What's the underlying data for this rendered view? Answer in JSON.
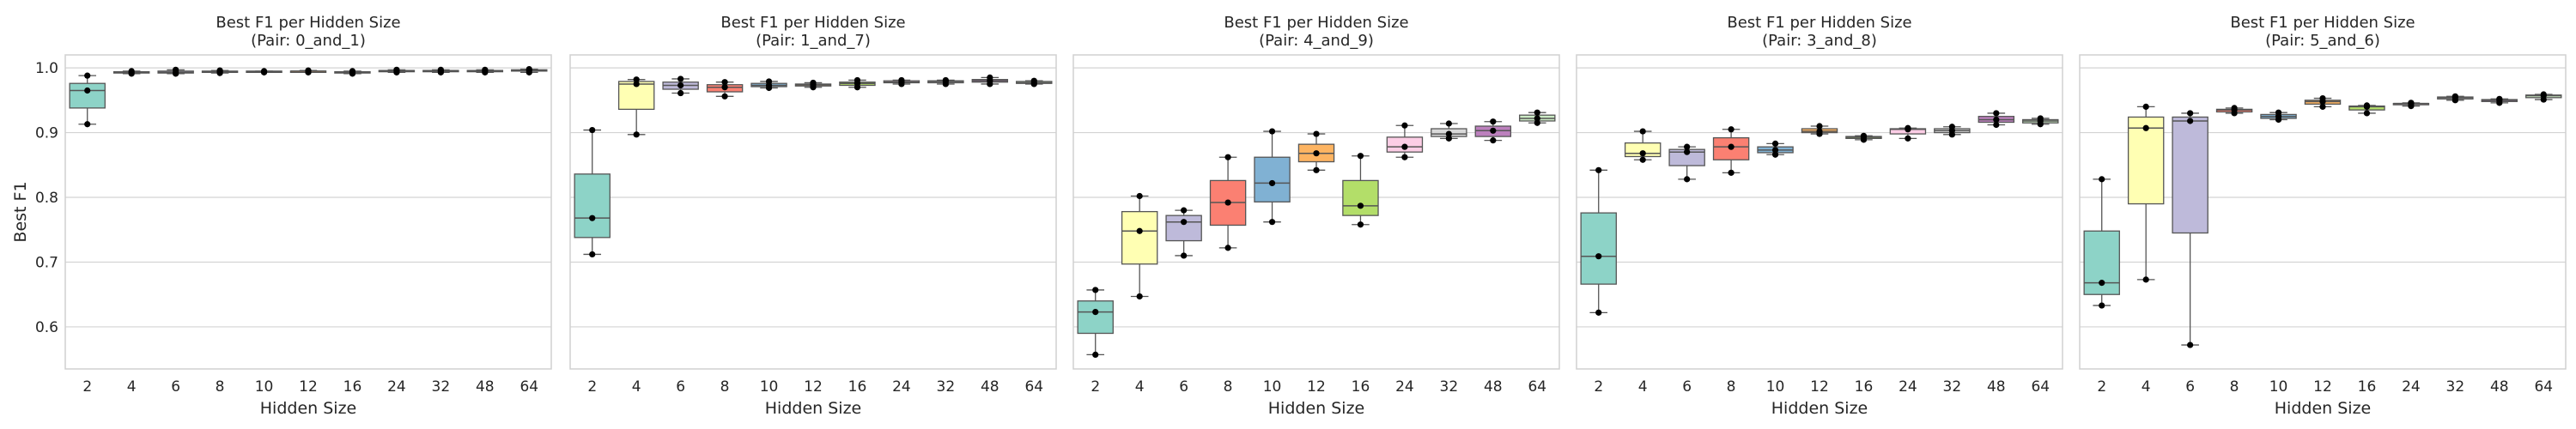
{
  "figure": {
    "palette": [
      "#8dd3c7",
      "#ffffb3",
      "#bebada",
      "#fb8072",
      "#80b1d3",
      "#fdb462",
      "#b3de69",
      "#fccde5",
      "#d9d9d9",
      "#bc80bd",
      "#ccebc5"
    ],
    "frame_color": "#d0d0d0",
    "grid_color": "#d3d3d3",
    "box_edge_color": "#555555",
    "point_color": "#000000"
  },
  "chart_data": [
    {
      "type": "box",
      "title_line1": "Best F1 per Hidden Size",
      "title_line2": "(Pair: 0_and_1)",
      "xlabel": "Hidden Size",
      "ylabel": "Best F1",
      "categories": [
        "2",
        "4",
        "6",
        "8",
        "10",
        "12",
        "16",
        "24",
        "32",
        "48",
        "64"
      ],
      "ylim": [
        0.535,
        1.02
      ],
      "yticks": [
        0.6,
        0.7,
        0.8,
        0.9,
        1.0
      ],
      "ytick_labels": [
        "0.6",
        "0.7",
        "0.8",
        "0.9",
        "1.0"
      ],
      "grid": true,
      "boxes": [
        {
          "whislo": 0.913,
          "q1": 0.938,
          "med": 0.965,
          "q3": 0.976,
          "whishi": 0.988,
          "points": [
            0.913,
            0.965,
            0.988
          ]
        },
        {
          "whislo": 0.991,
          "q1": 0.992,
          "med": 0.993,
          "q3": 0.994,
          "whishi": 0.995,
          "points": [
            0.991,
            0.993,
            0.995
          ]
        },
        {
          "whislo": 0.991,
          "q1": 0.992,
          "med": 0.993,
          "q3": 0.995,
          "whishi": 0.997,
          "points": [
            0.991,
            0.993,
            0.997
          ]
        },
        {
          "whislo": 0.992,
          "q1": 0.993,
          "med": 0.994,
          "q3": 0.995,
          "whishi": 0.996,
          "points": [
            0.992,
            0.994,
            0.996
          ]
        },
        {
          "whislo": 0.993,
          "q1": 0.994,
          "med": 0.994,
          "q3": 0.995,
          "whishi": 0.995,
          "points": [
            0.993,
            0.994,
            0.995
          ]
        },
        {
          "whislo": 0.993,
          "q1": 0.994,
          "med": 0.995,
          "q3": 0.995,
          "whishi": 0.996,
          "points": [
            0.993,
            0.995,
            0.996
          ]
        },
        {
          "whislo": 0.991,
          "q1": 0.992,
          "med": 0.993,
          "q3": 0.994,
          "whishi": 0.995,
          "points": [
            0.991,
            0.993,
            0.995
          ]
        },
        {
          "whislo": 0.993,
          "q1": 0.994,
          "med": 0.995,
          "q3": 0.996,
          "whishi": 0.997,
          "points": [
            0.993,
            0.995,
            0.997
          ]
        },
        {
          "whislo": 0.993,
          "q1": 0.994,
          "med": 0.995,
          "q3": 0.996,
          "whishi": 0.997,
          "points": [
            0.993,
            0.995,
            0.997
          ]
        },
        {
          "whislo": 0.993,
          "q1": 0.994,
          "med": 0.995,
          "q3": 0.996,
          "whishi": 0.997,
          "points": [
            0.993,
            0.995,
            0.997
          ]
        },
        {
          "whislo": 0.993,
          "q1": 0.995,
          "med": 0.996,
          "q3": 0.997,
          "whishi": 0.998,
          "points": [
            0.993,
            0.996,
            0.998
          ]
        }
      ]
    },
    {
      "type": "box",
      "title_line1": "Best F1 per Hidden Size",
      "title_line2": "(Pair: 1_and_7)",
      "xlabel": "Hidden Size",
      "ylabel": "",
      "categories": [
        "2",
        "4",
        "6",
        "8",
        "10",
        "12",
        "16",
        "24",
        "32",
        "48",
        "64"
      ],
      "ylim": [
        0.535,
        1.02
      ],
      "yticks": [
        0.6,
        0.7,
        0.8,
        0.9,
        1.0
      ],
      "ytick_labels": [],
      "grid": true,
      "boxes": [
        {
          "whislo": 0.712,
          "q1": 0.738,
          "med": 0.768,
          "q3": 0.836,
          "whishi": 0.904,
          "points": [
            0.712,
            0.768,
            0.904
          ]
        },
        {
          "whislo": 0.897,
          "q1": 0.936,
          "med": 0.975,
          "q3": 0.979,
          "whishi": 0.982,
          "points": [
            0.897,
            0.975,
            0.982
          ]
        },
        {
          "whislo": 0.961,
          "q1": 0.967,
          "med": 0.973,
          "q3": 0.978,
          "whishi": 0.983,
          "points": [
            0.961,
            0.973,
            0.983
          ]
        },
        {
          "whislo": 0.956,
          "q1": 0.963,
          "med": 0.97,
          "q3": 0.974,
          "whishi": 0.978,
          "points": [
            0.956,
            0.97,
            0.978
          ]
        },
        {
          "whislo": 0.969,
          "q1": 0.971,
          "med": 0.973,
          "q3": 0.976,
          "whishi": 0.979,
          "points": [
            0.969,
            0.973,
            0.979
          ]
        },
        {
          "whislo": 0.97,
          "q1": 0.972,
          "med": 0.974,
          "q3": 0.975,
          "whishi": 0.977,
          "points": [
            0.97,
            0.974,
            0.977
          ]
        },
        {
          "whislo": 0.97,
          "q1": 0.973,
          "med": 0.976,
          "q3": 0.978,
          "whishi": 0.981,
          "points": [
            0.97,
            0.976,
            0.981
          ]
        },
        {
          "whislo": 0.975,
          "q1": 0.977,
          "med": 0.978,
          "q3": 0.98,
          "whishi": 0.981,
          "points": [
            0.975,
            0.978,
            0.981
          ]
        },
        {
          "whislo": 0.975,
          "q1": 0.977,
          "med": 0.979,
          "q3": 0.98,
          "whishi": 0.981,
          "points": [
            0.975,
            0.979,
            0.981
          ]
        },
        {
          "whislo": 0.975,
          "q1": 0.978,
          "med": 0.98,
          "q3": 0.982,
          "whishi": 0.985,
          "points": [
            0.975,
            0.98,
            0.985
          ]
        },
        {
          "whislo": 0.975,
          "q1": 0.976,
          "med": 0.977,
          "q3": 0.979,
          "whishi": 0.98,
          "points": [
            0.975,
            0.977,
            0.98
          ]
        }
      ]
    },
    {
      "type": "box",
      "title_line1": "Best F1 per Hidden Size",
      "title_line2": "(Pair: 4_and_9)",
      "xlabel": "Hidden Size",
      "ylabel": "",
      "categories": [
        "2",
        "4",
        "6",
        "8",
        "10",
        "12",
        "16",
        "24",
        "32",
        "48",
        "64"
      ],
      "ylim": [
        0.535,
        1.02
      ],
      "yticks": [
        0.6,
        0.7,
        0.8,
        0.9,
        1.0
      ],
      "ytick_labels": [],
      "grid": true,
      "boxes": [
        {
          "whislo": 0.557,
          "q1": 0.59,
          "med": 0.623,
          "q3": 0.64,
          "whishi": 0.657,
          "points": [
            0.557,
            0.623,
            0.657
          ]
        },
        {
          "whislo": 0.647,
          "q1": 0.697,
          "med": 0.748,
          "q3": 0.778,
          "whishi": 0.802,
          "points": [
            0.647,
            0.748,
            0.802
          ]
        },
        {
          "whislo": 0.71,
          "q1": 0.733,
          "med": 0.762,
          "q3": 0.772,
          "whishi": 0.78,
          "points": [
            0.71,
            0.762,
            0.78
          ]
        },
        {
          "whislo": 0.722,
          "q1": 0.757,
          "med": 0.792,
          "q3": 0.826,
          "whishi": 0.862,
          "points": [
            0.722,
            0.792,
            0.862
          ]
        },
        {
          "whislo": 0.762,
          "q1": 0.793,
          "med": 0.822,
          "q3": 0.862,
          "whishi": 0.902,
          "points": [
            0.762,
            0.822,
            0.902
          ]
        },
        {
          "whislo": 0.842,
          "q1": 0.855,
          "med": 0.868,
          "q3": 0.882,
          "whishi": 0.898,
          "points": [
            0.842,
            0.868,
            0.898
          ]
        },
        {
          "whislo": 0.758,
          "q1": 0.772,
          "med": 0.787,
          "q3": 0.826,
          "whishi": 0.864,
          "points": [
            0.758,
            0.787,
            0.864
          ]
        },
        {
          "whislo": 0.862,
          "q1": 0.87,
          "med": 0.878,
          "q3": 0.893,
          "whishi": 0.911,
          "points": [
            0.862,
            0.878,
            0.911
          ]
        },
        {
          "whislo": 0.891,
          "q1": 0.894,
          "med": 0.898,
          "q3": 0.906,
          "whishi": 0.914,
          "points": [
            0.891,
            0.898,
            0.914
          ]
        },
        {
          "whislo": 0.888,
          "q1": 0.894,
          "med": 0.903,
          "q3": 0.91,
          "whishi": 0.917,
          "points": [
            0.888,
            0.903,
            0.917
          ]
        },
        {
          "whislo": 0.915,
          "q1": 0.918,
          "med": 0.922,
          "q3": 0.927,
          "whishi": 0.931,
          "points": [
            0.915,
            0.922,
            0.931
          ]
        }
      ]
    },
    {
      "type": "box",
      "title_line1": "Best F1 per Hidden Size",
      "title_line2": "(Pair: 3_and_8)",
      "xlabel": "Hidden Size",
      "ylabel": "",
      "categories": [
        "2",
        "4",
        "6",
        "8",
        "10",
        "12",
        "16",
        "24",
        "32",
        "48",
        "64"
      ],
      "ylim": [
        0.535,
        1.02
      ],
      "yticks": [
        0.6,
        0.7,
        0.8,
        0.9,
        1.0
      ],
      "ytick_labels": [],
      "grid": true,
      "boxes": [
        {
          "whislo": 0.622,
          "q1": 0.666,
          "med": 0.709,
          "q3": 0.776,
          "whishi": 0.842,
          "points": [
            0.622,
            0.709,
            0.842
          ]
        },
        {
          "whislo": 0.858,
          "q1": 0.863,
          "med": 0.868,
          "q3": 0.884,
          "whishi": 0.902,
          "points": [
            0.858,
            0.868,
            0.902
          ]
        },
        {
          "whislo": 0.828,
          "q1": 0.849,
          "med": 0.87,
          "q3": 0.874,
          "whishi": 0.878,
          "points": [
            0.828,
            0.87,
            0.878
          ]
        },
        {
          "whislo": 0.838,
          "q1": 0.858,
          "med": 0.878,
          "q3": 0.892,
          "whishi": 0.905,
          "points": [
            0.838,
            0.878,
            0.905
          ]
        },
        {
          "whislo": 0.866,
          "q1": 0.869,
          "med": 0.873,
          "q3": 0.878,
          "whishi": 0.883,
          "points": [
            0.866,
            0.873,
            0.883
          ]
        },
        {
          "whislo": 0.898,
          "q1": 0.9,
          "med": 0.902,
          "q3": 0.906,
          "whishi": 0.91,
          "points": [
            0.898,
            0.902,
            0.91
          ]
        },
        {
          "whislo": 0.889,
          "q1": 0.891,
          "med": 0.893,
          "q3": 0.894,
          "whishi": 0.895,
          "points": [
            0.889,
            0.893,
            0.895
          ]
        },
        {
          "whislo": 0.891,
          "q1": 0.898,
          "med": 0.905,
          "q3": 0.906,
          "whishi": 0.907,
          "points": [
            0.891,
            0.905,
            0.907
          ]
        },
        {
          "whislo": 0.897,
          "q1": 0.9,
          "med": 0.903,
          "q3": 0.906,
          "whishi": 0.909,
          "points": [
            0.897,
            0.903,
            0.909
          ]
        },
        {
          "whislo": 0.912,
          "q1": 0.916,
          "med": 0.92,
          "q3": 0.925,
          "whishi": 0.93,
          "points": [
            0.912,
            0.92,
            0.93
          ]
        },
        {
          "whislo": 0.913,
          "q1": 0.915,
          "med": 0.918,
          "q3": 0.92,
          "whishi": 0.922,
          "points": [
            0.913,
            0.918,
            0.922
          ]
        }
      ]
    },
    {
      "type": "box",
      "title_line1": "Best F1 per Hidden Size",
      "title_line2": "(Pair: 5_and_6)",
      "xlabel": "Hidden Size",
      "ylabel": "",
      "categories": [
        "2",
        "4",
        "6",
        "8",
        "10",
        "12",
        "16",
        "24",
        "32",
        "48",
        "64"
      ],
      "ylim": [
        0.535,
        1.02
      ],
      "yticks": [
        0.6,
        0.7,
        0.8,
        0.9,
        1.0
      ],
      "ytick_labels": [],
      "grid": true,
      "boxes": [
        {
          "whislo": 0.633,
          "q1": 0.65,
          "med": 0.668,
          "q3": 0.748,
          "whishi": 0.828,
          "points": [
            0.633,
            0.668,
            0.828
          ]
        },
        {
          "whislo": 0.673,
          "q1": 0.79,
          "med": 0.907,
          "q3": 0.924,
          "whishi": 0.94,
          "points": [
            0.673,
            0.907,
            0.94
          ]
        },
        {
          "whislo": 0.572,
          "q1": 0.745,
          "med": 0.918,
          "q3": 0.924,
          "whishi": 0.93,
          "points": [
            0.572,
            0.918,
            0.93
          ]
        },
        {
          "whislo": 0.93,
          "q1": 0.932,
          "med": 0.935,
          "q3": 0.936,
          "whishi": 0.938,
          "points": [
            0.93,
            0.935,
            0.938
          ]
        },
        {
          "whislo": 0.92,
          "q1": 0.922,
          "med": 0.925,
          "q3": 0.928,
          "whishi": 0.931,
          "points": [
            0.92,
            0.925,
            0.931
          ]
        },
        {
          "whislo": 0.94,
          "q1": 0.944,
          "med": 0.948,
          "q3": 0.95,
          "whishi": 0.953,
          "points": [
            0.94,
            0.948,
            0.953
          ]
        },
        {
          "whislo": 0.93,
          "q1": 0.935,
          "med": 0.94,
          "q3": 0.941,
          "whishi": 0.942,
          "points": [
            0.93,
            0.94,
            0.942
          ]
        },
        {
          "whislo": 0.941,
          "q1": 0.943,
          "med": 0.945,
          "q3": 0.945,
          "whishi": 0.946,
          "points": [
            0.941,
            0.945,
            0.946
          ]
        },
        {
          "whislo": 0.95,
          "q1": 0.952,
          "med": 0.954,
          "q3": 0.955,
          "whishi": 0.956,
          "points": [
            0.95,
            0.954,
            0.956
          ]
        },
        {
          "whislo": 0.946,
          "q1": 0.948,
          "med": 0.95,
          "q3": 0.951,
          "whishi": 0.952,
          "points": [
            0.946,
            0.95,
            0.952
          ]
        },
        {
          "whislo": 0.951,
          "q1": 0.954,
          "med": 0.957,
          "q3": 0.958,
          "whishi": 0.959,
          "points": [
            0.951,
            0.957,
            0.959
          ]
        }
      ]
    }
  ]
}
